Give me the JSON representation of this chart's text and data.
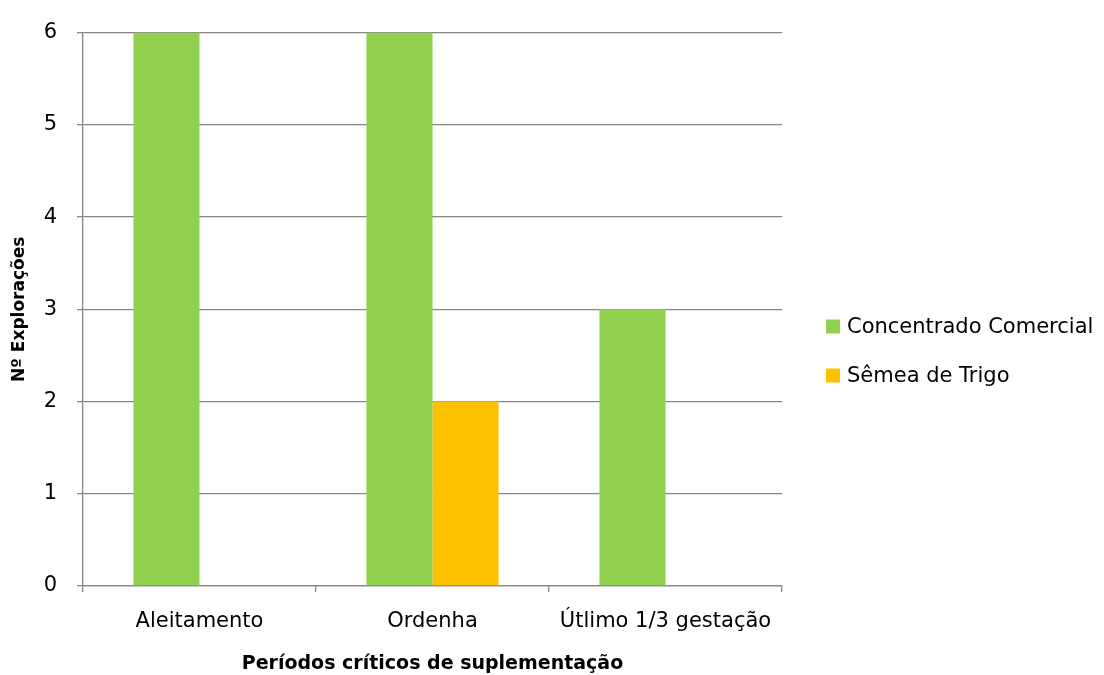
{
  "chart_data": {
    "type": "bar",
    "xlabel": "Períodos críticos de suplementação",
    "ylabel": "Nº Explorações",
    "categories": [
      "Aleitamento",
      "Ordenha",
      "Útlimo 1/3 gestação"
    ],
    "series": [
      {
        "name": "Concentrado Comercial",
        "color": "#92d050",
        "values": [
          6,
          6,
          3
        ]
      },
      {
        "name": "Sêmea de Trigo",
        "color": "#ffc000",
        "values": [
          null,
          2,
          null
        ]
      }
    ],
    "ylim": [
      0,
      6
    ],
    "yticks": [
      0,
      1,
      2,
      3,
      4,
      5,
      6
    ],
    "grid": "y",
    "legend": "right"
  }
}
